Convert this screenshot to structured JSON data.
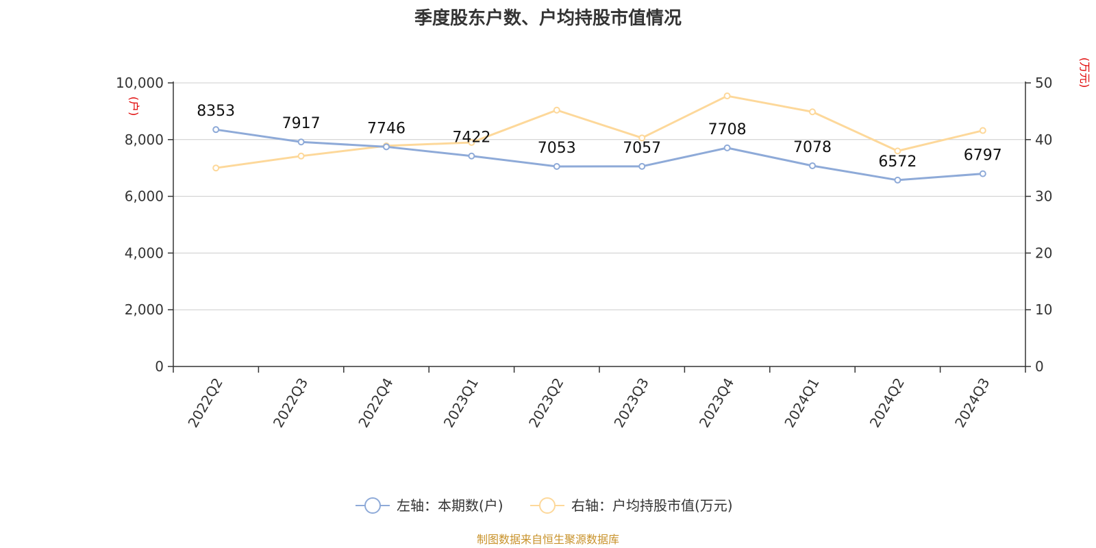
{
  "title": "季度股东户数、户均持股市值情况",
  "source": "制图数据来自恒生聚源数据库",
  "colors": {
    "left_series": "#8eaad8",
    "right_series": "#fdd89a",
    "unit": "#e00000",
    "source": "#c8922a"
  },
  "chart_data": {
    "type": "line",
    "categories": [
      "2022Q2",
      "2022Q3",
      "2022Q4",
      "2023Q1",
      "2023Q2",
      "2023Q3",
      "2023Q4",
      "2024Q1",
      "2024Q2",
      "2024Q3"
    ],
    "y_left": {
      "unit": "(户)",
      "range": [
        0,
        10000
      ],
      "ticks": [
        "0",
        "2,000",
        "4,000",
        "6,000",
        "8,000",
        "10,000"
      ]
    },
    "y_right": {
      "unit": "(万元)",
      "range": [
        0,
        50
      ],
      "ticks": [
        "0",
        "10",
        "20",
        "30",
        "40",
        "50"
      ]
    },
    "grid": true,
    "legend_position": "bottom",
    "series": [
      {
        "name": "左轴：本期数(户)",
        "axis": "left",
        "color": "#8eaad8",
        "values": [
          8353,
          7917,
          7746,
          7422,
          7053,
          7057,
          7708,
          7078,
          6572,
          6797
        ],
        "labels": [
          "8353",
          "7917",
          "7746",
          "7422",
          "7053",
          "7057",
          "7708",
          "7078",
          "6572",
          "6797"
        ]
      },
      {
        "name": "右轴：户均持股市值(万元)",
        "axis": "right",
        "color": "#fdd89a",
        "values": [
          35.0,
          37.1,
          38.9,
          39.5,
          45.2,
          40.3,
          47.7,
          44.9,
          38.0,
          41.6
        ]
      }
    ]
  }
}
